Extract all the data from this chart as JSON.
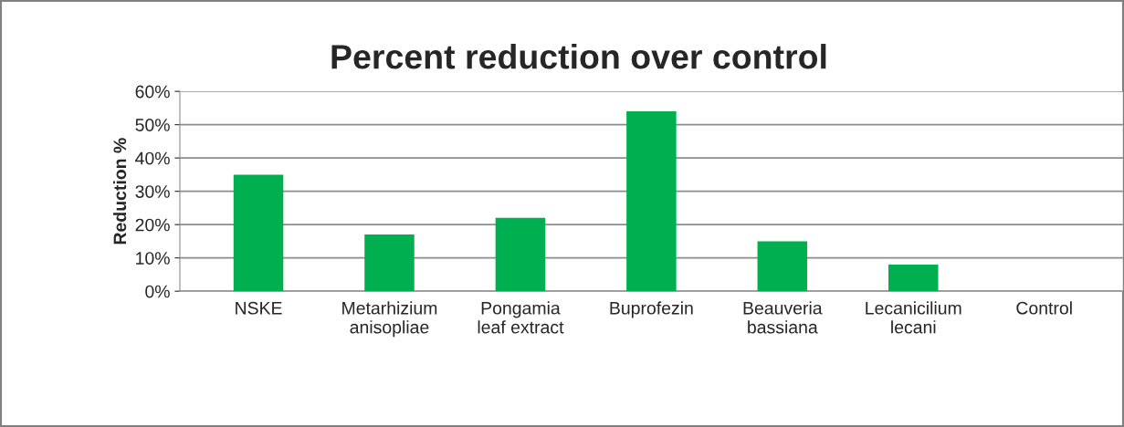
{
  "chart_data": {
    "type": "bar",
    "title": "Percent reduction over control",
    "ylabel": "Reduction %",
    "categories": [
      "NSKE",
      "Metarhizium\nanisopliae",
      "Pongamia\nleaf extract",
      "Buprofezin",
      "Beauveria\nbassiana",
      "Lecanicilium\nlecani",
      "Control"
    ],
    "values": [
      35,
      17,
      22,
      54,
      15,
      8,
      0
    ],
    "color": "#00b050",
    "ylim": [
      0,
      60
    ],
    "yticks": [
      {
        "value": 0,
        "label": "0%"
      },
      {
        "value": 10,
        "label": "10%"
      },
      {
        "value": 20,
        "label": "20%"
      },
      {
        "value": 30,
        "label": "30%"
      },
      {
        "value": 40,
        "label": "40%"
      },
      {
        "value": 50,
        "label": "50%"
      },
      {
        "value": 60,
        "label": "60%"
      }
    ],
    "grid": "y",
    "legend": false
  }
}
